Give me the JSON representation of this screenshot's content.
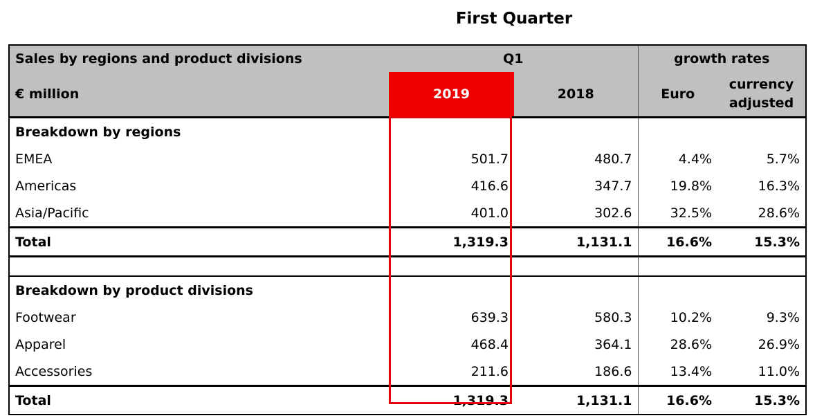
{
  "title": "First Quarter",
  "header": {
    "row1_label": "Sales by regions and product divisions",
    "period": "Q1",
    "growth_label": "growth rates",
    "unit": "€ million",
    "year_current": "2019",
    "year_prior": "2018",
    "euro": "Euro",
    "currency_adjusted_line1": "currency",
    "currency_adjusted_line2": "adjusted"
  },
  "regions": {
    "heading": "Breakdown by regions",
    "rows": [
      {
        "label": "EMEA",
        "y2019": "501.7",
        "y2018": "480.7",
        "euro": "4.4%",
        "fx": "5.7%"
      },
      {
        "label": "Americas",
        "y2019": "416.6",
        "y2018": "347.7",
        "euro": "19.8%",
        "fx": "16.3%"
      },
      {
        "label": "Asia/Pacific",
        "y2019": "401.0",
        "y2018": "302.6",
        "euro": "32.5%",
        "fx": "28.6%"
      }
    ],
    "total": {
      "label": "Total",
      "y2019": "1,319.3",
      "y2018": "1,131.1",
      "euro": "16.6%",
      "fx": "15.3%"
    }
  },
  "divisions": {
    "heading": "Breakdown by product divisions",
    "rows": [
      {
        "label": "Footwear",
        "y2019": "639.3",
        "y2018": "580.3",
        "euro": "10.2%",
        "fx": "9.3%"
      },
      {
        "label": "Apparel",
        "y2019": "468.4",
        "y2018": "364.1",
        "euro": "28.6%",
        "fx": "26.9%"
      },
      {
        "label": "Accessories",
        "y2019": "211.6",
        "y2018": "186.6",
        "euro": "13.4%",
        "fx": "11.0%"
      }
    ],
    "total": {
      "label": "Total",
      "y2019": "1,319.3",
      "y2018": "1,131.1",
      "euro": "16.6%",
      "fx": "15.3%"
    }
  },
  "colors": {
    "highlight": "#ee0000",
    "header_bg": "#c0c0c0"
  }
}
